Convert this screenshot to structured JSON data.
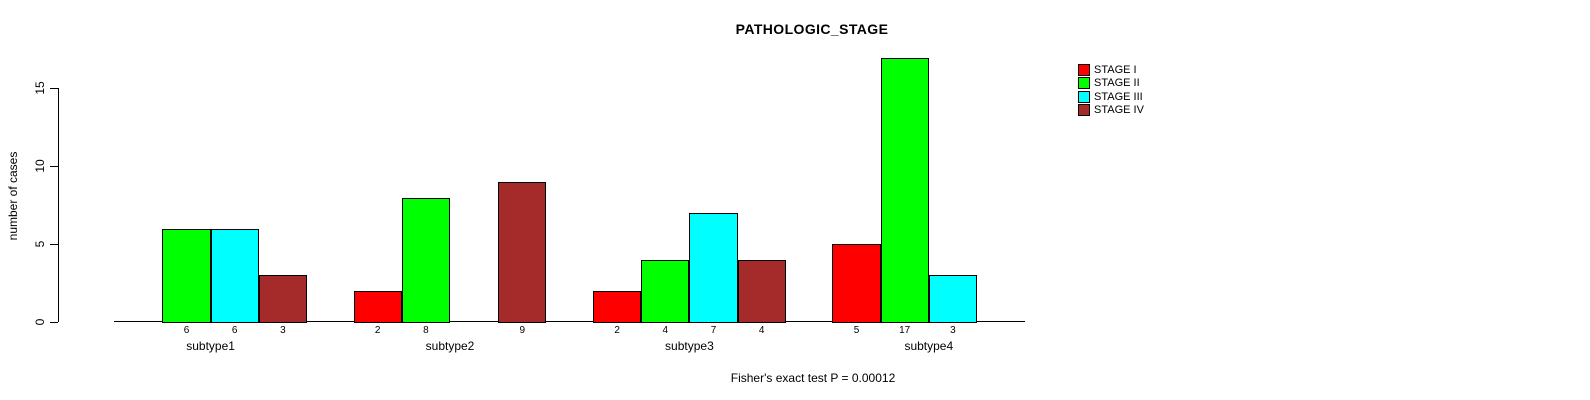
{
  "chart_data": {
    "type": "bar",
    "title": "PATHOLOGIC_STAGE",
    "ylabel": "number of cases",
    "footnote": "Fisher's exact test P = 0.00012",
    "categories": [
      "subtype1",
      "subtype2",
      "subtype3",
      "subtype4"
    ],
    "series": [
      {
        "name": "STAGE I",
        "color": "#FF0000",
        "values": [
          0,
          2,
          2,
          5
        ]
      },
      {
        "name": "STAGE II",
        "color": "#00FF00",
        "values": [
          6,
          8,
          4,
          17
        ]
      },
      {
        "name": "STAGE III",
        "color": "#00FFFF",
        "values": [
          6,
          0,
          7,
          3
        ]
      },
      {
        "name": "STAGE IV",
        "color": "#A52A2A",
        "values": [
          3,
          9,
          4,
          0
        ]
      }
    ],
    "yticks": [
      0,
      5,
      10,
      15
    ],
    "ylim": [
      0,
      17
    ],
    "grid": false,
    "legend_position": "top-right",
    "value_labels": "value shown under each nonzero bar; zero-value bars omitted"
  }
}
